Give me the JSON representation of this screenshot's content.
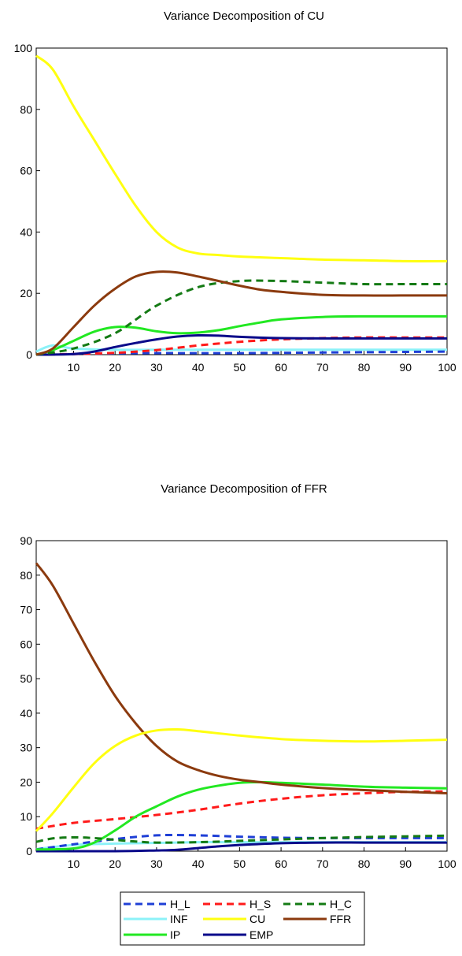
{
  "legend": {
    "items": [
      {
        "label": "H_L",
        "color": "#1f3fd6",
        "dash": true
      },
      {
        "label": "H_S",
        "color": "#ff1a1a",
        "dash": true
      },
      {
        "label": "H_C",
        "color": "#147a14",
        "dash": true
      },
      {
        "label": "INF",
        "color": "#8cf2f8",
        "dash": false
      },
      {
        "label": "CU",
        "color": "#ffff10",
        "dash": false
      },
      {
        "label": "FFR",
        "color": "#8b3a0e",
        "dash": false
      },
      {
        "label": "IP",
        "color": "#22e822",
        "dash": false
      },
      {
        "label": "EMP",
        "color": "#0a0a8a",
        "dash": false
      }
    ]
  },
  "chart_data": [
    {
      "type": "line",
      "title": "Variance Decomposition of CU",
      "xlabel": "",
      "ylabel": "",
      "xlim": [
        1,
        100
      ],
      "ylim": [
        0,
        100
      ],
      "xticks": [
        10,
        20,
        30,
        40,
        50,
        60,
        70,
        80,
        90,
        100
      ],
      "yticks": [
        0,
        20,
        40,
        60,
        80,
        100
      ],
      "grid": false,
      "series": [
        {
          "name": "H_L",
          "x": [
            1,
            10,
            20,
            30,
            40,
            50,
            60,
            70,
            80,
            90,
            100
          ],
          "values": [
            0,
            0.2,
            0.4,
            0.5,
            0.5,
            0.5,
            0.6,
            0.7,
            0.8,
            0.9,
            1.0
          ]
        },
        {
          "name": "H_S",
          "x": [
            1,
            10,
            20,
            30,
            40,
            50,
            60,
            70,
            80,
            90,
            100
          ],
          "values": [
            0,
            0.2,
            0.6,
            1.5,
            3.0,
            4.2,
            5.0,
            5.4,
            5.6,
            5.6,
            5.6
          ]
        },
        {
          "name": "H_C",
          "x": [
            1,
            10,
            20,
            30,
            40,
            50,
            60,
            70,
            80,
            90,
            100
          ],
          "values": [
            0,
            2,
            7,
            16,
            22,
            24,
            24,
            23.5,
            23,
            23,
            23
          ]
        },
        {
          "name": "INF",
          "x": [
            1,
            5,
            10,
            20,
            30,
            40,
            50,
            60,
            70,
            80,
            90,
            100
          ],
          "values": [
            1,
            3,
            2,
            1.6,
            1.6,
            1.6,
            1.6,
            1.6,
            1.6,
            1.6,
            1.6,
            1.6
          ]
        },
        {
          "name": "CU",
          "x": [
            1,
            5,
            10,
            15,
            20,
            25,
            30,
            35,
            40,
            45,
            50,
            60,
            70,
            80,
            90,
            100
          ],
          "values": [
            97.5,
            93,
            81,
            70,
            59,
            48.5,
            40,
            35,
            33,
            32.5,
            32,
            31.5,
            31,
            30.8,
            30.5,
            30.5
          ]
        },
        {
          "name": "FFR",
          "x": [
            1,
            5,
            10,
            15,
            20,
            25,
            30,
            35,
            40,
            45,
            50,
            55,
            60,
            70,
            80,
            90,
            100
          ],
          "values": [
            0,
            2,
            9,
            16,
            21.5,
            25.5,
            27,
            26.8,
            25.5,
            24,
            22.5,
            21.2,
            20.5,
            19.5,
            19.3,
            19.3,
            19.3
          ]
        },
        {
          "name": "IP",
          "x": [
            1,
            5,
            10,
            15,
            20,
            25,
            30,
            35,
            40,
            45,
            50,
            55,
            60,
            70,
            80,
            90,
            100
          ],
          "values": [
            0,
            1.5,
            4.5,
            7.5,
            9,
            8.8,
            7.6,
            7,
            7.2,
            8,
            9.3,
            10.5,
            11.5,
            12.3,
            12.5,
            12.5,
            12.5
          ]
        },
        {
          "name": "EMP",
          "x": [
            1,
            10,
            15,
            20,
            25,
            30,
            35,
            40,
            45,
            50,
            60,
            70,
            80,
            90,
            100
          ],
          "values": [
            0,
            0.2,
            1,
            2.5,
            3.8,
            5,
            5.9,
            6.3,
            6.2,
            5.8,
            5.4,
            5.3,
            5.3,
            5.3,
            5.3
          ]
        }
      ]
    },
    {
      "type": "line",
      "title": "Variance Decomposition of FFR",
      "xlabel": "",
      "ylabel": "",
      "xlim": [
        1,
        100
      ],
      "ylim": [
        0,
        90
      ],
      "xticks": [
        10,
        20,
        30,
        40,
        50,
        60,
        70,
        80,
        90,
        100
      ],
      "yticks": [
        0,
        10,
        20,
        30,
        40,
        50,
        60,
        70,
        80,
        90
      ],
      "grid": false,
      "series": [
        {
          "name": "H_L",
          "x": [
            1,
            10,
            20,
            30,
            40,
            50,
            60,
            70,
            80,
            90,
            100
          ],
          "values": [
            0.5,
            2,
            3.5,
            4.6,
            4.6,
            4.2,
            3.9,
            3.8,
            3.8,
            3.8,
            3.8
          ]
        },
        {
          "name": "H_S",
          "x": [
            1,
            10,
            20,
            30,
            40,
            50,
            60,
            70,
            80,
            90,
            100
          ],
          "values": [
            6.5,
            8.2,
            9.3,
            10.5,
            12,
            13.8,
            15.2,
            16.2,
            16.8,
            17.2,
            17.3
          ]
        },
        {
          "name": "H_C",
          "x": [
            1,
            5,
            10,
            15,
            20,
            25,
            30,
            40,
            50,
            60,
            70,
            80,
            90,
            100
          ],
          "values": [
            2.7,
            3.7,
            4.0,
            3.8,
            3.3,
            2.8,
            2.5,
            2.6,
            3.0,
            3.4,
            3.8,
            4.1,
            4.3,
            4.5
          ]
        },
        {
          "name": "INF",
          "x": [
            1,
            10,
            20,
            30,
            40,
            50,
            60,
            70,
            80,
            90,
            100
          ],
          "values": [
            0.6,
            1.8,
            2.2,
            2.4,
            2.6,
            2.6,
            2.6,
            2.6,
            2.6,
            2.6,
            2.6
          ]
        },
        {
          "name": "CU",
          "x": [
            1,
            5,
            10,
            15,
            20,
            25,
            30,
            35,
            40,
            50,
            60,
            70,
            80,
            90,
            100
          ],
          "values": [
            5.8,
            11,
            18.5,
            25.5,
            30.5,
            33.5,
            35,
            35.3,
            34.8,
            33.5,
            32.5,
            32,
            31.8,
            32,
            32.3
          ]
        },
        {
          "name": "FFR",
          "x": [
            1,
            5,
            10,
            15,
            20,
            25,
            30,
            35,
            40,
            45,
            50,
            55,
            60,
            70,
            80,
            90,
            100
          ],
          "values": [
            83.5,
            77,
            66,
            55,
            45,
            37,
            30.5,
            26,
            23.5,
            21.8,
            20.7,
            20,
            19.3,
            18.3,
            17.7,
            17.2,
            16.8
          ]
        },
        {
          "name": "IP",
          "x": [
            1,
            10,
            15,
            20,
            25,
            30,
            35,
            40,
            45,
            50,
            55,
            60,
            70,
            80,
            90,
            100
          ],
          "values": [
            0.5,
            0.8,
            2.5,
            6,
            10,
            13,
            15.8,
            17.8,
            19,
            19.8,
            20,
            19.8,
            19.3,
            18.7,
            18.4,
            18.2
          ]
        },
        {
          "name": "EMP",
          "x": [
            1,
            20,
            30,
            35,
            40,
            45,
            50,
            60,
            70,
            80,
            90,
            100
          ],
          "values": [
            0,
            0,
            0.2,
            0.4,
            0.9,
            1.4,
            1.8,
            2.3,
            2.5,
            2.5,
            2.5,
            2.5
          ]
        }
      ]
    }
  ]
}
